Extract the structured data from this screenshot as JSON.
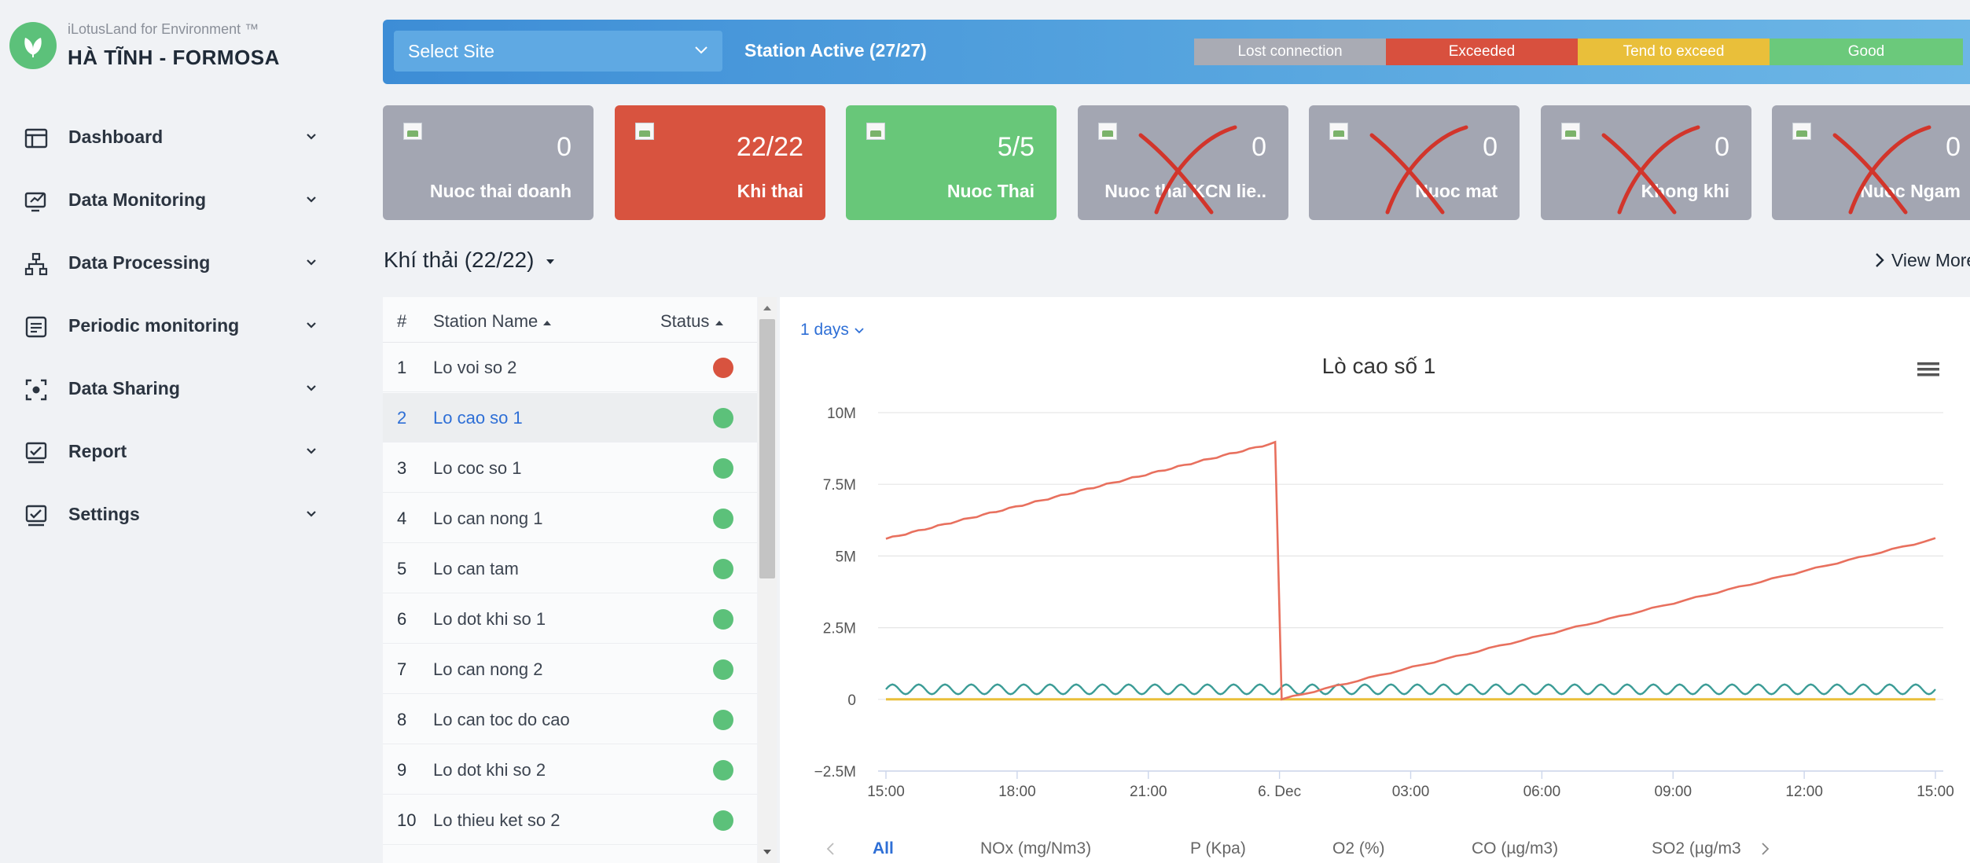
{
  "brand": {
    "subtitle": "iLotusLand for Environment ™",
    "title": "HÀ TĨNH - FORMOSA"
  },
  "menu": [
    {
      "label": "Dashboard",
      "icon": "dashboard-icon"
    },
    {
      "label": "Data Monitoring",
      "icon": "monitor-icon"
    },
    {
      "label": "Data Processing",
      "icon": "hierarchy-icon"
    },
    {
      "label": "Periodic monitoring",
      "icon": "document-icon"
    },
    {
      "label": "Data Sharing",
      "icon": "share-icon"
    },
    {
      "label": "Report",
      "icon": "report-icon"
    },
    {
      "label": "Settings",
      "icon": "settings-icon"
    }
  ],
  "topbar": {
    "select_placeholder": "Select Site",
    "station_active": "Station Active (27/27)",
    "legend": [
      {
        "label": "Lost connection",
        "color": "#a9abb4"
      },
      {
        "label": "Exceeded",
        "color": "#d8503e"
      },
      {
        "label": "Tend to exceed",
        "color": "#e9bf3a"
      },
      {
        "label": "Good",
        "color": "#6bc97b"
      }
    ]
  },
  "cards": [
    {
      "value": "0",
      "label": "Nuoc thai doanh",
      "color": "#a3a6b2",
      "crossed": false
    },
    {
      "value": "22/22",
      "label": "Khi thai",
      "color": "#d8533f",
      "crossed": false
    },
    {
      "value": "5/5",
      "label": "Nuoc Thai",
      "color": "#68c779",
      "crossed": false
    },
    {
      "value": "0",
      "label": "Nuoc thai KCN lie..",
      "color": "#a3a6b2",
      "crossed": true
    },
    {
      "value": "0",
      "label": "Nuoc mat",
      "color": "#a3a6b2",
      "crossed": true
    },
    {
      "value": "0",
      "label": "Khong khi",
      "color": "#a3a6b2",
      "crossed": true
    },
    {
      "value": "0",
      "label": "Nuoc Ngam",
      "color": "#a3a6b2",
      "crossed": true
    }
  ],
  "section": {
    "title": "Khí thải  (22/22)",
    "view_more": "View More"
  },
  "table": {
    "headers": {
      "num": "#",
      "name": "Station Name",
      "status": "Status"
    },
    "rows": [
      {
        "num": "1",
        "name": "Lo voi so 2",
        "status_color": "#d8533f"
      },
      {
        "num": "2",
        "name": "Lo cao so 1",
        "status_color": "#5cc17a",
        "selected": true
      },
      {
        "num": "3",
        "name": "Lo coc so 1",
        "status_color": "#5cc17a"
      },
      {
        "num": "4",
        "name": "Lo can nong 1",
        "status_color": "#5cc17a"
      },
      {
        "num": "5",
        "name": "Lo can tam",
        "status_color": "#5cc17a"
      },
      {
        "num": "6",
        "name": "Lo dot khi so 1",
        "status_color": "#5cc17a"
      },
      {
        "num": "7",
        "name": "Lo can nong 2",
        "status_color": "#5cc17a"
      },
      {
        "num": "8",
        "name": "Lo can toc do cao",
        "status_color": "#5cc17a"
      },
      {
        "num": "9",
        "name": "Lo dot khi so 2",
        "status_color": "#5cc17a"
      },
      {
        "num": "10",
        "name": "Lo thieu ket so 2",
        "status_color": "#5cc17a"
      }
    ]
  },
  "chart": {
    "range_label": "1 days",
    "tabs": [
      "All",
      "NOx (mg/Nm3)",
      "P (Kpa)",
      "O2 (%)",
      "CO (µg/m3)",
      "SO2 (µg/m3"
    ]
  },
  "chart_data": {
    "type": "line",
    "title": "Lò cao số 1",
    "x_ticks": [
      "15:00",
      "18:00",
      "21:00",
      "6. Dec",
      "03:00",
      "06:00",
      "09:00",
      "12:00",
      "15:00"
    ],
    "y_ticks": [
      "10M",
      "7.5M",
      "5M",
      "2.5M",
      "0",
      "−2.5M"
    ],
    "ylim": [
      -2500000,
      10000000
    ],
    "xlim_hours": [
      0,
      24
    ],
    "series": [
      {
        "color": "#e8705e",
        "points": [
          [
            0,
            5600000
          ],
          [
            8.9,
            8950000
          ],
          [
            9.05,
            0
          ],
          [
            24,
            5600000
          ]
        ]
      },
      {
        "color": "#3b9c96",
        "baseline": 350000,
        "amplitude": 170000,
        "period_hours": 0.6
      },
      {
        "color": "#e9bf3a",
        "constant": 0
      }
    ],
    "grid": true
  }
}
